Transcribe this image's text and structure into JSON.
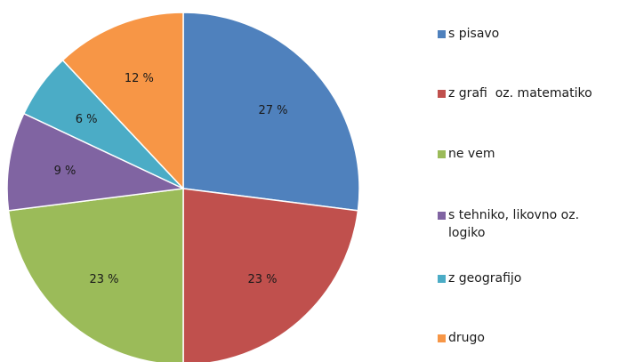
{
  "chart_data": {
    "type": "pie",
    "title": "",
    "slices": [
      {
        "label": "s pisavo",
        "value": 27,
        "display": "27 %",
        "color": "#4f81bd"
      },
      {
        "label": "z grafi  oz. matematiko",
        "value": 23,
        "display": "23 %",
        "color": "#c0504d"
      },
      {
        "label": "ne vem",
        "value": 23,
        "display": "23 %",
        "color": "#9bbb59"
      },
      {
        "label": "s tehniko, likovno oz.\nlogiko",
        "value": 9,
        "display": "9 %",
        "color": "#8064a2"
      },
      {
        "label": "z geografijo",
        "value": 6,
        "display": "6 %",
        "color": "#4bacc6"
      },
      {
        "label": "drugo",
        "value": 12,
        "display": "12 %",
        "color": "#f79646"
      }
    ],
    "legend_position": "right"
  }
}
